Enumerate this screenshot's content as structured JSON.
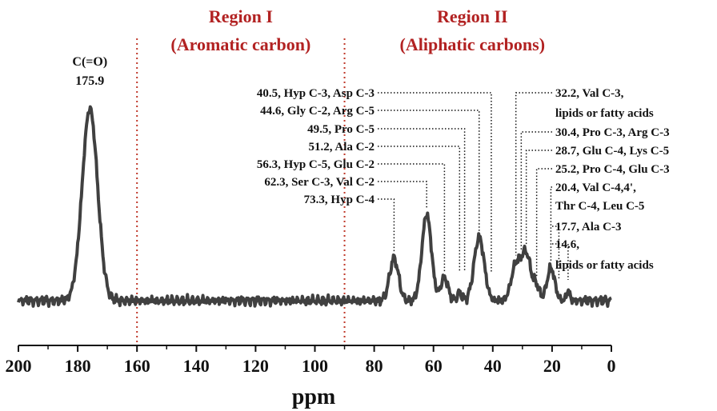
{
  "chart_data": {
    "type": "line",
    "xlabel": "ppm",
    "ylabel": "",
    "xlim": [
      200,
      0
    ],
    "x_ticks": [
      "200",
      "180",
      "160",
      "140",
      "120",
      "100",
      "80",
      "60",
      "40",
      "20",
      "0"
    ],
    "x_tick_values": [
      200,
      180,
      160,
      140,
      120,
      100,
      80,
      60,
      40,
      20,
      0
    ],
    "grid": false,
    "line_color": "#404040",
    "marker_color": "#c0392b",
    "regions": [
      {
        "line1": "Region I",
        "line2": "(Aromatic carbon)",
        "from": 160,
        "to": 90
      },
      {
        "line1": "Region II",
        "line2": "(Aliphatic carbons)",
        "from": 90,
        "to": 0
      }
    ],
    "region_boundaries": [
      160,
      90
    ],
    "carbonyl_peak": {
      "line1": "C(=O)",
      "line2": "175.9",
      "ppm": 175.9
    },
    "peak_annotations": [
      {
        "text": "40.5, Hyp C-3, Asp C-3",
        "ppm": 40.5,
        "side": "left"
      },
      {
        "text": "44.6, Gly C-2, Arg C-5",
        "ppm": 44.6,
        "side": "left"
      },
      {
        "text": "49.5, Pro C-5",
        "ppm": 49.5,
        "side": "left"
      },
      {
        "text": "51.2, Ala C-2",
        "ppm": 51.2,
        "side": "left"
      },
      {
        "text": "56.3, Hyp C-5, Glu C-2",
        "ppm": 56.3,
        "side": "left"
      },
      {
        "text": "62.3, Ser C-3, Val C-2",
        "ppm": 62.3,
        "side": "left"
      },
      {
        "text": "73.3, Hyp C-4",
        "ppm": 73.3,
        "side": "left"
      },
      {
        "text": "32.2, Val C-3,",
        "ppm": 32.2,
        "side": "right"
      },
      {
        "text": "lipids or fatty acids",
        "ppm": null,
        "side": "right"
      },
      {
        "text": "30.4, Pro C-3, Arg C-3",
        "ppm": 30.4,
        "side": "right"
      },
      {
        "text": "28.7, Glu C-4, Lys C-5",
        "ppm": 28.7,
        "side": "right"
      },
      {
        "text": "25.2, Pro C-4, Glu C-3",
        "ppm": 25.2,
        "side": "right"
      },
      {
        "text": "20.4, Val C-4,4',",
        "ppm": 20.4,
        "side": "right"
      },
      {
        "text": "Thr C-4, Leu C-5",
        "ppm": null,
        "side": "right"
      },
      {
        "text": "17.7, Ala C-3",
        "ppm": 17.7,
        "side": "right"
      },
      {
        "text": "14.6,",
        "ppm": 14.6,
        "side": "right"
      },
      {
        "text": "lipids or fatty acids",
        "ppm": null,
        "side": "right"
      }
    ],
    "series": [
      {
        "peaks": [
          {
            "ppm": 175.9,
            "height": 1.0,
            "width": 2.6
          },
          {
            "ppm": 73.3,
            "height": 0.22,
            "width": 1.5
          },
          {
            "ppm": 62.3,
            "height": 0.45,
            "width": 1.6
          },
          {
            "ppm": 56.3,
            "height": 0.12,
            "width": 1.2
          },
          {
            "ppm": 51.2,
            "height": 0.04,
            "width": 0.8
          },
          {
            "ppm": 44.6,
            "height": 0.33,
            "width": 1.7
          },
          {
            "ppm": 32.2,
            "height": 0.18,
            "width": 1.6
          },
          {
            "ppm": 28.7,
            "height": 0.24,
            "width": 1.6
          },
          {
            "ppm": 25.2,
            "height": 0.07,
            "width": 1.0
          },
          {
            "ppm": 20.4,
            "height": 0.17,
            "width": 1.3
          },
          {
            "ppm": 14.6,
            "height": 0.05,
            "width": 0.6
          }
        ]
      }
    ]
  }
}
